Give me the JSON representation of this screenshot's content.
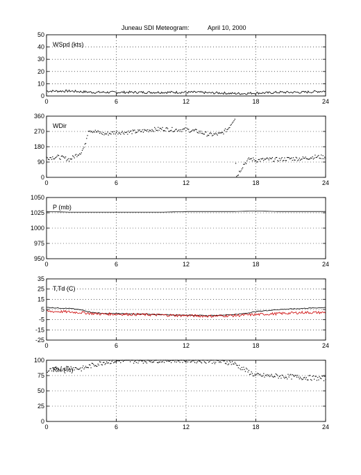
{
  "title": "Juneau SDI Meteogram:",
  "date": "April 10, 2000",
  "chart_data": [
    {
      "type": "line",
      "label": "WSpd (kts)",
      "xlim": [
        0,
        24
      ],
      "ylim": [
        0,
        50
      ],
      "xticks": [
        0,
        6,
        12,
        18,
        24
      ],
      "yticks": [
        0,
        10,
        20,
        30,
        40,
        50
      ],
      "grid": true,
      "series": [
        {
          "color": "#000000",
          "x": [
            0,
            1,
            2,
            3,
            4,
            5,
            6,
            7,
            8,
            9,
            10,
            11,
            12,
            13,
            14,
            15,
            16,
            17,
            18,
            19,
            20,
            21,
            22,
            23,
            24
          ],
          "y": [
            4,
            4,
            4,
            3.5,
            3,
            3,
            3,
            3,
            3,
            3,
            3,
            3,
            3,
            3,
            2.5,
            2.5,
            2,
            2,
            2.5,
            2.5,
            3,
            3,
            3,
            3.5,
            4
          ],
          "noise": 1
        }
      ]
    },
    {
      "type": "scatter",
      "label": "WDir",
      "xlim": [
        0,
        24
      ],
      "ylim": [
        0,
        360
      ],
      "xticks": [
        0,
        6,
        12,
        18,
        24
      ],
      "yticks": [
        0,
        90,
        180,
        270,
        360
      ],
      "grid": true,
      "series": [
        {
          "color": "#000000",
          "x": [
            0,
            1,
            2,
            3,
            3.3,
            3.6,
            5,
            6,
            7,
            8,
            9,
            10,
            11,
            12,
            13,
            14,
            15,
            15.6,
            16.2,
            16.3,
            17,
            17.5,
            18,
            19,
            20,
            21,
            22,
            23,
            24
          ],
          "y": [
            115,
            120,
            105,
            150,
            185,
            280,
            255,
            265,
            265,
            270,
            280,
            285,
            280,
            280,
            270,
            250,
            255,
            285,
            350,
            0,
            80,
            110,
            100,
            105,
            105,
            110,
            110,
            120,
            120
          ],
          "noise": 12
        }
      ]
    },
    {
      "type": "line",
      "label": "P (mb)",
      "xlim": [
        0,
        24
      ],
      "ylim": [
        950,
        1050
      ],
      "xticks": [
        0,
        6,
        12,
        18,
        24
      ],
      "yticks": [
        950,
        975,
        1000,
        1025,
        1050
      ],
      "grid": true,
      "series": [
        {
          "color": "#000000",
          "x": [
            0,
            2,
            4,
            6,
            8,
            10,
            12,
            14,
            16,
            18,
            20,
            22,
            24
          ],
          "y": [
            1027,
            1026,
            1026,
            1026,
            1026,
            1026,
            1027,
            1027,
            1027,
            1028,
            1027,
            1027,
            1027
          ],
          "noise": 0
        }
      ]
    },
    {
      "type": "line",
      "label": "T,Td (C)",
      "xlim": [
        0,
        24
      ],
      "ylim": [
        -25,
        35
      ],
      "xticks": [
        0,
        6,
        12,
        18,
        24
      ],
      "yticks": [
        -25,
        -15,
        -5,
        5,
        15,
        25,
        35
      ],
      "grid": true,
      "series": [
        {
          "color": "#000000",
          "x": [
            0,
            1,
            2,
            3,
            4,
            5,
            6,
            8,
            10,
            12,
            14,
            16,
            17,
            18,
            20,
            22,
            24
          ],
          "y": [
            7,
            6.5,
            6,
            4.5,
            2,
            1,
            1,
            0.5,
            0,
            -0.5,
            -1,
            0,
            1,
            3,
            5,
            6,
            7
          ],
          "noise": 0.4
        },
        {
          "color": "#cc0000",
          "x": [
            0,
            1,
            2,
            3,
            4,
            5,
            6,
            8,
            10,
            12,
            14,
            16,
            17,
            18,
            20,
            22,
            24
          ],
          "y": [
            3,
            3,
            2.5,
            2,
            1,
            0.5,
            0.5,
            0,
            -0.5,
            -1,
            -1.5,
            -1,
            -0.5,
            0,
            1,
            2,
            2
          ],
          "noise": 1.3
        }
      ]
    },
    {
      "type": "scatter",
      "label": "RH (%)",
      "xlim": [
        0,
        24
      ],
      "ylim": [
        0,
        100
      ],
      "xticks": [
        0,
        6,
        12,
        18,
        24
      ],
      "yticks": [
        0,
        25,
        50,
        75,
        100
      ],
      "grid": true,
      "series": [
        {
          "color": "#000000",
          "x": [
            0,
            1,
            2,
            3,
            4,
            5,
            6,
            8,
            10,
            12,
            14,
            16,
            17,
            18,
            20,
            22,
            24
          ],
          "y": [
            82,
            86,
            88,
            86,
            92,
            97,
            99,
            99,
            100,
            100,
            99,
            96,
            85,
            75,
            74,
            72,
            70
          ],
          "noise": 4
        }
      ]
    }
  ]
}
